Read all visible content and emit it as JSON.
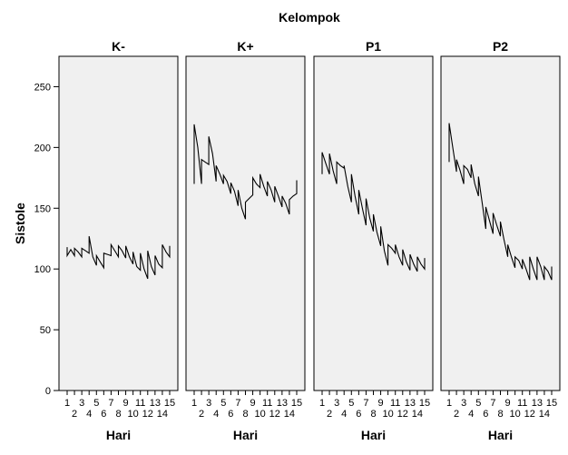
{
  "chart_data": {
    "type": "line",
    "title": "Kelompok",
    "ylabel": "Sistole",
    "xlabel": "Hari",
    "ylim": [
      0,
      275
    ],
    "yticks": [
      0,
      50,
      100,
      150,
      200,
      250
    ],
    "xticks_top": [
      "1",
      "3",
      "5",
      "7",
      "9",
      "11",
      "13",
      "15"
    ],
    "xticks_bottom": [
      "2",
      "4",
      "6",
      "8",
      "10",
      "12",
      "14"
    ],
    "x_range": [
      1,
      15
    ],
    "grid": false,
    "panel_background": "#f0f0f0",
    "line_color": "#000000",
    "panels": [
      {
        "name": "K-",
        "points": [
          [
            1.0,
            118
          ],
          [
            1.0,
            111
          ],
          [
            1.5,
            116
          ],
          [
            2.0,
            111
          ],
          [
            2.0,
            117
          ],
          [
            2.5,
            114
          ],
          [
            3.0,
            110
          ],
          [
            3.0,
            117
          ],
          [
            3.5,
            115
          ],
          [
            4.0,
            113
          ],
          [
            4.0,
            127
          ],
          [
            4.5,
            110
          ],
          [
            5.0,
            103
          ],
          [
            5.0,
            111
          ],
          [
            5.5,
            106
          ],
          [
            6.0,
            101
          ],
          [
            6.0,
            113
          ],
          [
            6.5,
            112
          ],
          [
            7.0,
            111
          ],
          [
            7.0,
            120
          ],
          [
            7.5,
            115
          ],
          [
            8.0,
            110
          ],
          [
            8.0,
            119
          ],
          [
            8.5,
            115
          ],
          [
            9.0,
            109
          ],
          [
            9.0,
            119
          ],
          [
            9.5,
            110
          ],
          [
            10.0,
            104
          ],
          [
            10.0,
            114
          ],
          [
            10.5,
            102
          ],
          [
            11.0,
            99
          ],
          [
            11.0,
            113
          ],
          [
            11.5,
            100
          ],
          [
            12.0,
            92
          ],
          [
            12.0,
            115
          ],
          [
            12.5,
            102
          ],
          [
            13.0,
            95
          ],
          [
            13.0,
            111
          ],
          [
            13.5,
            104
          ],
          [
            14.0,
            101
          ],
          [
            14.0,
            120
          ],
          [
            14.5,
            114
          ],
          [
            15.0,
            110
          ],
          [
            15.0,
            119
          ]
        ]
      },
      {
        "name": "K+",
        "points": [
          [
            1.0,
            170
          ],
          [
            1.0,
            219
          ],
          [
            1.5,
            200
          ],
          [
            2.0,
            170
          ],
          [
            2.0,
            190
          ],
          [
            2.5,
            188
          ],
          [
            3.0,
            186
          ],
          [
            3.0,
            209
          ],
          [
            3.5,
            195
          ],
          [
            4.0,
            172
          ],
          [
            4.0,
            185
          ],
          [
            4.5,
            178
          ],
          [
            5.0,
            170
          ],
          [
            5.0,
            177
          ],
          [
            5.5,
            172
          ],
          [
            6.0,
            162
          ],
          [
            6.0,
            171
          ],
          [
            6.5,
            164
          ],
          [
            7.0,
            152
          ],
          [
            7.0,
            165
          ],
          [
            7.5,
            150
          ],
          [
            8.0,
            141
          ],
          [
            8.0,
            155
          ],
          [
            8.5,
            158
          ],
          [
            9.0,
            161
          ],
          [
            9.0,
            175
          ],
          [
            9.5,
            170
          ],
          [
            10.0,
            167
          ],
          [
            10.0,
            178
          ],
          [
            10.5,
            168
          ],
          [
            11.0,
            160
          ],
          [
            11.0,
            172
          ],
          [
            11.5,
            165
          ],
          [
            12.0,
            155
          ],
          [
            12.0,
            168
          ],
          [
            12.5,
            160
          ],
          [
            13.0,
            151
          ],
          [
            13.0,
            160
          ],
          [
            13.5,
            154
          ],
          [
            14.0,
            145
          ],
          [
            14.0,
            157
          ],
          [
            14.5,
            160
          ],
          [
            15.0,
            162
          ],
          [
            15.0,
            173
          ]
        ]
      },
      {
        "name": "P1",
        "points": [
          [
            1.0,
            178
          ],
          [
            1.0,
            196
          ],
          [
            1.5,
            187
          ],
          [
            2.0,
            178
          ],
          [
            2.0,
            195
          ],
          [
            2.5,
            181
          ],
          [
            3.0,
            170
          ],
          [
            3.0,
            188
          ],
          [
            3.5,
            185
          ],
          [
            4.0,
            183
          ],
          [
            4.0,
            185
          ],
          [
            4.5,
            168
          ],
          [
            5.0,
            155
          ],
          [
            5.0,
            178
          ],
          [
            5.5,
            160
          ],
          [
            6.0,
            145
          ],
          [
            6.0,
            165
          ],
          [
            6.5,
            150
          ],
          [
            7.0,
            136
          ],
          [
            7.0,
            158
          ],
          [
            7.5,
            142
          ],
          [
            8.0,
            131
          ],
          [
            8.0,
            145
          ],
          [
            8.5,
            130
          ],
          [
            9.0,
            119
          ],
          [
            9.0,
            135
          ],
          [
            9.5,
            115
          ],
          [
            10.0,
            103
          ],
          [
            10.0,
            120
          ],
          [
            10.5,
            117
          ],
          [
            11.0,
            113
          ],
          [
            11.0,
            120
          ],
          [
            11.5,
            110
          ],
          [
            12.0,
            103
          ],
          [
            12.0,
            116
          ],
          [
            12.5,
            106
          ],
          [
            13.0,
            99
          ],
          [
            13.0,
            112
          ],
          [
            13.5,
            104
          ],
          [
            14.0,
            98
          ],
          [
            14.0,
            110
          ],
          [
            14.5,
            104
          ],
          [
            15.0,
            100
          ],
          [
            15.0,
            109
          ]
        ]
      },
      {
        "name": "P2",
        "points": [
          [
            1.0,
            188
          ],
          [
            1.0,
            220
          ],
          [
            1.5,
            200
          ],
          [
            2.0,
            180
          ],
          [
            2.0,
            190
          ],
          [
            2.5,
            181
          ],
          [
            3.0,
            170
          ],
          [
            3.0,
            185
          ],
          [
            3.5,
            182
          ],
          [
            4.0,
            175
          ],
          [
            4.0,
            186
          ],
          [
            4.5,
            170
          ],
          [
            5.0,
            160
          ],
          [
            5.0,
            176
          ],
          [
            5.5,
            155
          ],
          [
            6.0,
            133
          ],
          [
            6.0,
            151
          ],
          [
            6.5,
            140
          ],
          [
            7.0,
            129
          ],
          [
            7.0,
            146
          ],
          [
            7.5,
            136
          ],
          [
            8.0,
            127
          ],
          [
            8.0,
            139
          ],
          [
            8.5,
            124
          ],
          [
            9.0,
            110
          ],
          [
            9.0,
            120
          ],
          [
            9.5,
            110
          ],
          [
            10.0,
            101
          ],
          [
            10.0,
            110
          ],
          [
            10.5,
            107
          ],
          [
            11.0,
            100
          ],
          [
            11.0,
            108
          ],
          [
            11.5,
            100
          ],
          [
            12.0,
            91
          ],
          [
            12.0,
            110
          ],
          [
            12.5,
            100
          ],
          [
            13.0,
            91
          ],
          [
            13.0,
            110
          ],
          [
            13.5,
            102
          ],
          [
            14.0,
            91
          ],
          [
            14.0,
            102
          ],
          [
            14.5,
            98
          ],
          [
            15.0,
            91
          ],
          [
            15.0,
            102
          ]
        ]
      }
    ]
  }
}
